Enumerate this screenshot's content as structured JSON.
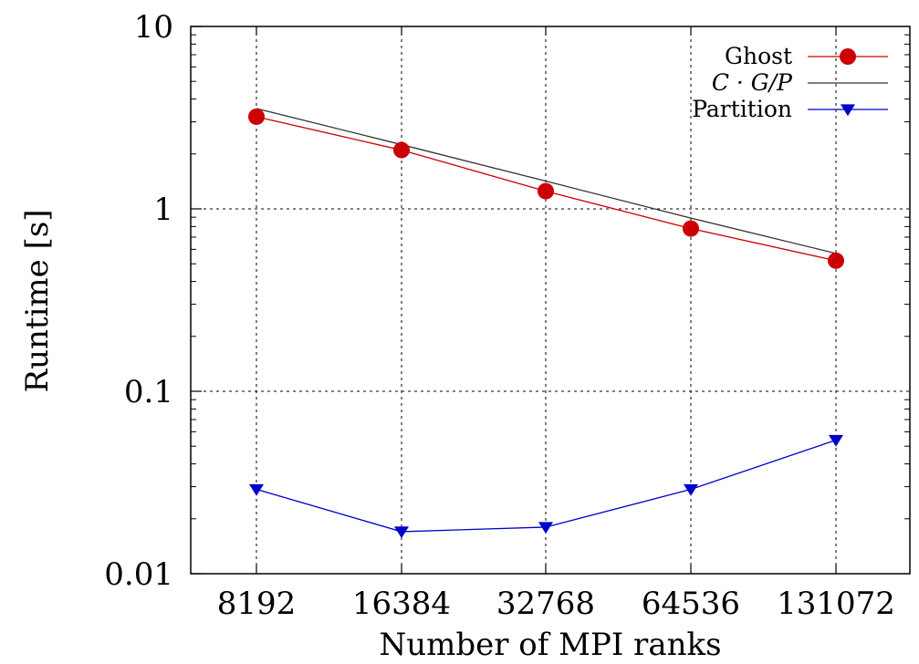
{
  "chart_data": {
    "type": "line",
    "title": "",
    "xlabel": "Number of MPI ranks",
    "ylabel": "Runtime [s]",
    "x_scale": "categorical",
    "y_scale": "log",
    "ylim": [
      0.01,
      10
    ],
    "grid": true,
    "legend_position": "top-right",
    "categories": [
      "8192",
      "16384",
      "32768",
      "64536",
      "131072"
    ],
    "y_tick_labels": [
      "0.01",
      "0.1",
      "1",
      "10"
    ],
    "y_tick_values": [
      0.01,
      0.1,
      1,
      10
    ],
    "series": [
      {
        "name": "Ghost",
        "values": [
          3.2,
          2.1,
          1.25,
          0.78,
          0.52
        ],
        "color": "#cc0000",
        "marker": "circle"
      },
      {
        "name": "C · G/P",
        "values": [
          3.55,
          2.25,
          1.42,
          0.89,
          0.57
        ],
        "color": "#333333",
        "marker": "none"
      },
      {
        "name": "Partition",
        "values": [
          0.029,
          0.017,
          0.018,
          0.029,
          0.054
        ],
        "color": "#0000cc",
        "marker": "triangle-down"
      }
    ]
  }
}
